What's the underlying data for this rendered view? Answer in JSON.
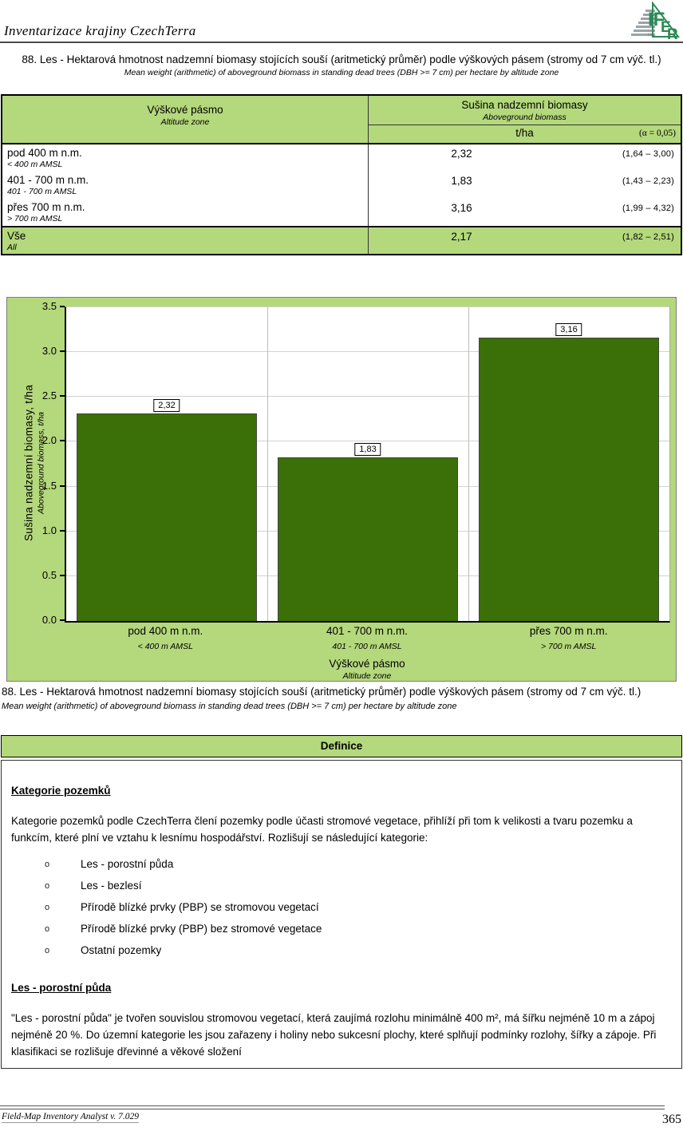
{
  "header": {
    "title": "Inventarizace krajiny CzechTerra",
    "logo": "IFER"
  },
  "caption": {
    "cs": "88. Les - Hektarová hmotnost nadzemní biomasy stojících souší (aritmetický průměr) podle výškových pásem (stromy od 7 cm výč. tl.)",
    "en": "Mean weight (arithmetic) of aboveground biomass in standing dead trees (DBH >= 7 cm) per hectare by altitude zone"
  },
  "table": {
    "col1": {
      "cs": "Výškové pásmo",
      "en": "Altitude zone"
    },
    "col2": {
      "cs": "Sušina nadzemní biomasy",
      "en": "Aboveground biomass"
    },
    "unit": "t/ha",
    "alpha": "(α = 0,05)",
    "rows": [
      {
        "cs": "pod 400 m n.m.",
        "en": "< 400 m AMSL",
        "value": "2,32",
        "ci": "(1,64 – 3,00)",
        "highlight": false
      },
      {
        "cs": "401 - 700 m n.m.",
        "en": "401 - 700 m AMSL",
        "value": "1,83",
        "ci": "(1,43 – 2,23)",
        "highlight": false
      },
      {
        "cs": "přes 700 m n.m.",
        "en": "> 700 m AMSL",
        "value": "3,16",
        "ci": "(1,99 – 4,32)",
        "highlight": false
      },
      {
        "cs": "Vše",
        "en": "All",
        "value": "2,17",
        "ci": "(1,82 – 2,51)",
        "highlight": true
      }
    ]
  },
  "chart_data": {
    "type": "bar",
    "title": "",
    "categories": [
      {
        "cs": "pod 400 m n.m.",
        "en": "< 400 m AMSL"
      },
      {
        "cs": "401 - 700 m n.m.",
        "en": "401 - 700 m AMSL"
      },
      {
        "cs": "přes 700 m n.m.",
        "en": "> 700 m AMSL"
      }
    ],
    "values": [
      2.32,
      1.83,
      3.16
    ],
    "value_labels": [
      "2,32",
      "1,83",
      "3,16"
    ],
    "xlabel": {
      "cs": "Výškové pásmo",
      "en": "Altitude zone"
    },
    "ylabel": {
      "cs": "Sušina nadzemní biomasy, t/ha",
      "en": "Aboveground biomass, t/ha"
    },
    "ylim": [
      0,
      3.5
    ],
    "ytick_step": 0.5,
    "yticks": [
      "0.0",
      "0.5",
      "1.0",
      "1.5",
      "2.0",
      "2.5",
      "3.0",
      "3.5"
    ],
    "grid": true,
    "legend": "none",
    "bar_color": "#3b7008",
    "background_color": "#b4d87c"
  },
  "definitions": {
    "header": "Definice",
    "heading1": "Kategorie pozemků",
    "para1": "Kategorie pozemků podle CzechTerra člení pozemky podle účasti stromové vegetace, přihlíží při tom k velikosti a tvaru pozemku a funkcím, které plní ve vztahu k lesnímu hospodářství. Rozlišují se následující kategorie:",
    "bullet_char": "o",
    "items": [
      "Les - porostní půda",
      "Les - bezlesí",
      "Přírodě blízké prvky (PBP) se stromovou vegetací",
      "Přírodě blízké prvky (PBP) bez stromové vegetace",
      "Ostatní pozemky"
    ],
    "heading2": "Les - porostní půda",
    "para2": "\"Les - porostní půda\" je tvořen souvislou stromovou vegetací, která zaujímá rozlohu minimálně 400 m², má šířku nejméně 10 m a zápoj nejméně 20 %. Do územní kategorie les jsou zařazeny i holiny nebo sukcesní plochy, které splňují podmínky rozlohy, šířky a zápoje. Při klasifikaci se rozlišuje dřevinné a věkové složení"
  },
  "footer": {
    "app": "Field-Map Inventory Analyst v. 7.029",
    "page_number": "365"
  }
}
